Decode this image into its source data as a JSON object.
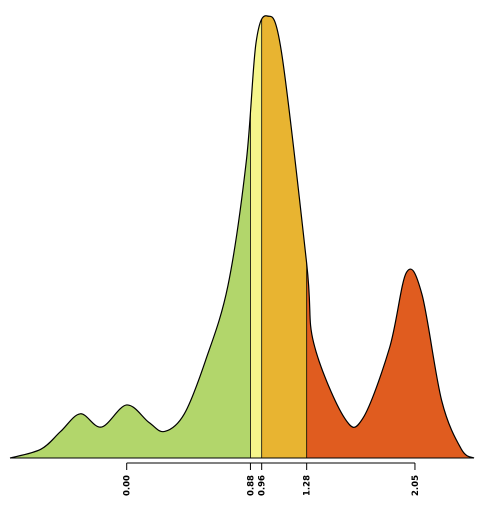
{
  "chart_data": {
    "type": "area",
    "title": "",
    "xlabel": "",
    "ylabel": "",
    "xlim": [
      -0.83,
      2.47
    ],
    "ylim": [
      0,
      1
    ],
    "grid": false,
    "legend": "none",
    "x_ticks": [
      {
        "value": 0.0,
        "label": "0.00"
      },
      {
        "value": 0.88,
        "label": "0.88"
      },
      {
        "value": 0.96,
        "label": "0.96"
      },
      {
        "value": 1.28,
        "label": "1.28"
      },
      {
        "value": 2.05,
        "label": "2.05"
      }
    ],
    "density_points": [
      {
        "x": -0.83,
        "y": 0.0
      },
      {
        "x": -0.61,
        "y": 0.02
      },
      {
        "x": -0.47,
        "y": 0.06
      },
      {
        "x": -0.33,
        "y": 0.1
      },
      {
        "x": -0.18,
        "y": 0.07
      },
      {
        "x": 0.0,
        "y": 0.12
      },
      {
        "x": 0.16,
        "y": 0.08
      },
      {
        "x": 0.27,
        "y": 0.06
      },
      {
        "x": 0.41,
        "y": 0.1
      },
      {
        "x": 0.56,
        "y": 0.22
      },
      {
        "x": 0.72,
        "y": 0.39
      },
      {
        "x": 0.85,
        "y": 0.67
      },
      {
        "x": 0.92,
        "y": 0.94
      },
      {
        "x": 1.0,
        "y": 1.0
      },
      {
        "x": 1.1,
        "y": 0.92
      },
      {
        "x": 1.28,
        "y": 0.44
      },
      {
        "x": 1.33,
        "y": 0.26
      },
      {
        "x": 1.55,
        "y": 0.09
      },
      {
        "x": 1.68,
        "y": 0.09
      },
      {
        "x": 1.87,
        "y": 0.25
      },
      {
        "x": 1.99,
        "y": 0.42
      },
      {
        "x": 2.1,
        "y": 0.37
      },
      {
        "x": 2.24,
        "y": 0.13
      },
      {
        "x": 2.38,
        "y": 0.02
      },
      {
        "x": 2.47,
        "y": 0.0
      }
    ],
    "regions": [
      {
        "from": -0.83,
        "to": 0.88,
        "color": "#b2d66b"
      },
      {
        "from": 0.88,
        "to": 0.96,
        "color": "#f6f58b"
      },
      {
        "from": 0.96,
        "to": 1.28,
        "color": "#e8b431"
      },
      {
        "from": 1.28,
        "to": 2.47,
        "color": "#e05c1f"
      }
    ]
  }
}
